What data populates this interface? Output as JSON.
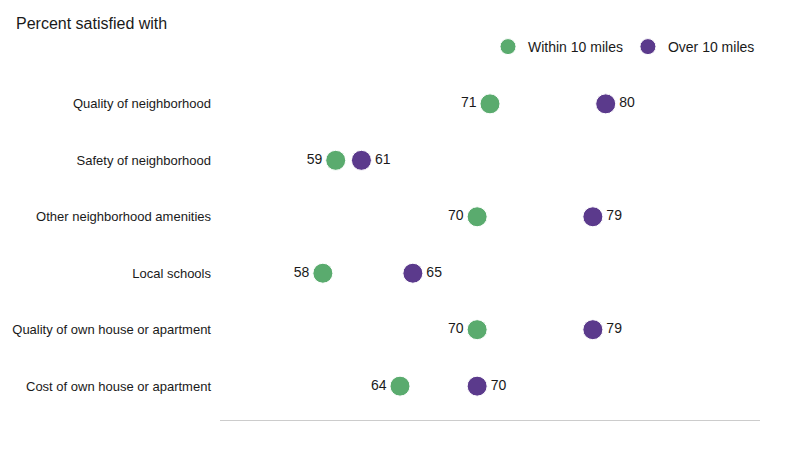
{
  "chart_data": {
    "type": "dot",
    "title": "Percent satisfied with",
    "categories": [
      "Quality of neighborhood",
      "Safety of neighborhood",
      "Other neighborhood amenities",
      "Local schools",
      "Quality of own house or apartment",
      "Cost of own house or apartment"
    ],
    "series": [
      {
        "name": "Within 10 miles",
        "color": "#5aab6e",
        "values": [
          71,
          59,
          70,
          58,
          70,
          64
        ]
      },
      {
        "name": "Over 10 miles",
        "color": "#5b3a8c",
        "values": [
          80,
          61,
          79,
          65,
          79,
          70
        ]
      }
    ],
    "xlim": [
      50,
      92
    ],
    "data_labels": true,
    "tick_labels": "y",
    "grid": false,
    "legend": "upper right"
  }
}
